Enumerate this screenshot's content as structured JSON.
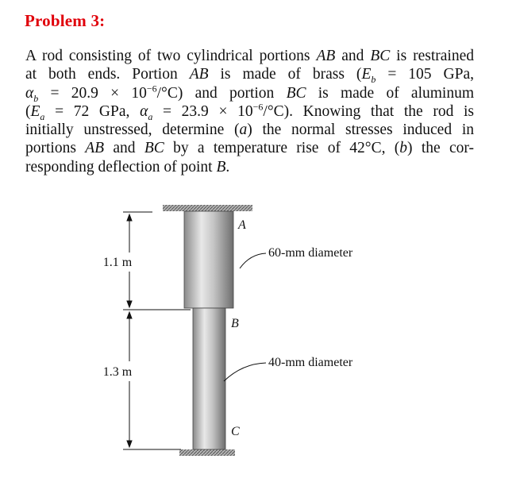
{
  "title": "Problem 3:",
  "paragraph": {
    "lines": [
      [
        "A rod consisting of two cylindrical portions ",
        "AB",
        " and ",
        "BC",
        " is restrained"
      ],
      [
        "at both ends. Portion ",
        "AB",
        " is made of brass (",
        "E",
        "b",
        " = 105 GPa,"
      ],
      [
        "α",
        "b",
        " = 20.9 × 10",
        "−6",
        "/°C) and portion ",
        "BC",
        " is made of aluminum"
      ],
      [
        "(",
        "E",
        "a",
        " = 72 GPa, ",
        "α",
        "a",
        " = 23.9 × 10",
        "−6",
        "/°C). Knowing that the rod is"
      ],
      [
        "initially unstressed, determine (",
        "a",
        ") the normal stresses induced in"
      ],
      [
        "portions ",
        "AB",
        " and ",
        "BC",
        " by a temperature rise of 42°C, (",
        "b",
        ") the cor-"
      ],
      [
        "responding deflection of point ",
        "B",
        "."
      ]
    ]
  },
  "figure": {
    "points": [
      "A",
      "B",
      "C"
    ],
    "lengths": [
      "1.1 m",
      "1.3 m"
    ],
    "diameters": [
      "60-mm diameter",
      "40-mm diameter"
    ]
  }
}
